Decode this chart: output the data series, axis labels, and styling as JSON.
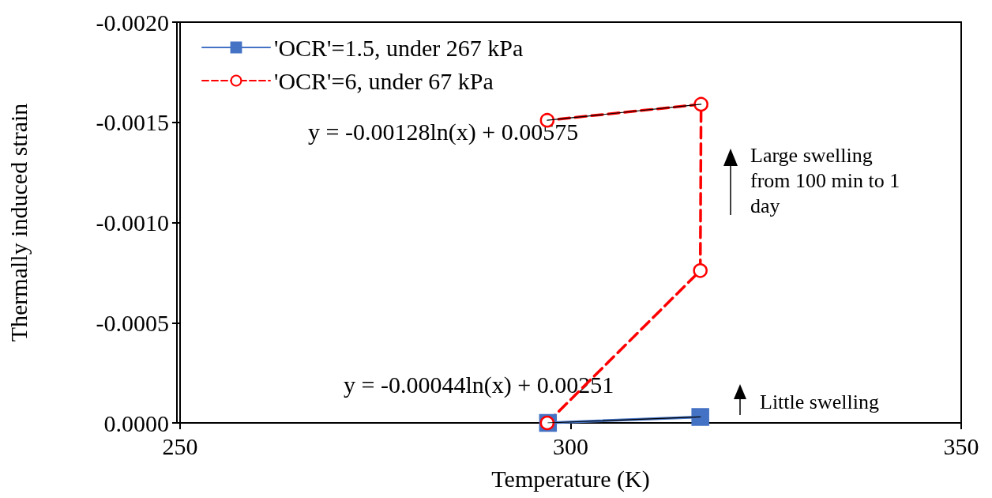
{
  "chart_data": {
    "type": "line",
    "xlabel": "Temperature (K)",
    "ylabel": "Thermally induced strain",
    "xlim": [
      250,
      350
    ],
    "xticks": [
      250,
      300,
      350
    ],
    "ylim": [
      0,
      -0.002
    ],
    "yticks": [
      {
        "value": -0.002,
        "label": "-0.0020"
      },
      {
        "value": -0.0015,
        "label": "-0.0015"
      },
      {
        "value": -0.001,
        "label": "-0.0010"
      },
      {
        "value": -0.0005,
        "label": "-0.0005"
      },
      {
        "value": 0,
        "label": "0.0000"
      }
    ],
    "grid": false,
    "legend": "top left",
    "series": [
      {
        "name": "'OCR'=1.5, under 267 kPa",
        "color": "#4472c4",
        "marker": "square",
        "line_style": "solid",
        "x": [
          297.1,
          316.6
        ],
        "values": [
          0,
          -3e-05
        ]
      },
      {
        "name": "'OCR'=6, under 67 kPa",
        "color": "#ff0000",
        "marker": "circle",
        "line_style": "dashed",
        "x": [
          297,
          316.6,
          316.7,
          297
        ],
        "values": [
          0,
          -0.00076,
          -0.00159,
          -0.00151
        ]
      },
      {
        "color": "#000000",
        "marker": "none",
        "line_style": "solid",
        "x": [
          316.7,
          297
        ],
        "values": [
          -0.00159,
          -0.00151
        ]
      },
      {
        "color": "#000000",
        "marker": "none",
        "line_style": "solid",
        "x": [
          297.1,
          316.6
        ],
        "values": [
          0,
          -3e-05
        ]
      }
    ],
    "annotations": [
      "y = -0.00128ln(x) + 0.00575",
      "Large swelling\nfrom 100 min to 1\nday",
      "y = -0.00044ln(x) + 0.00251",
      "Little swelling"
    ]
  }
}
